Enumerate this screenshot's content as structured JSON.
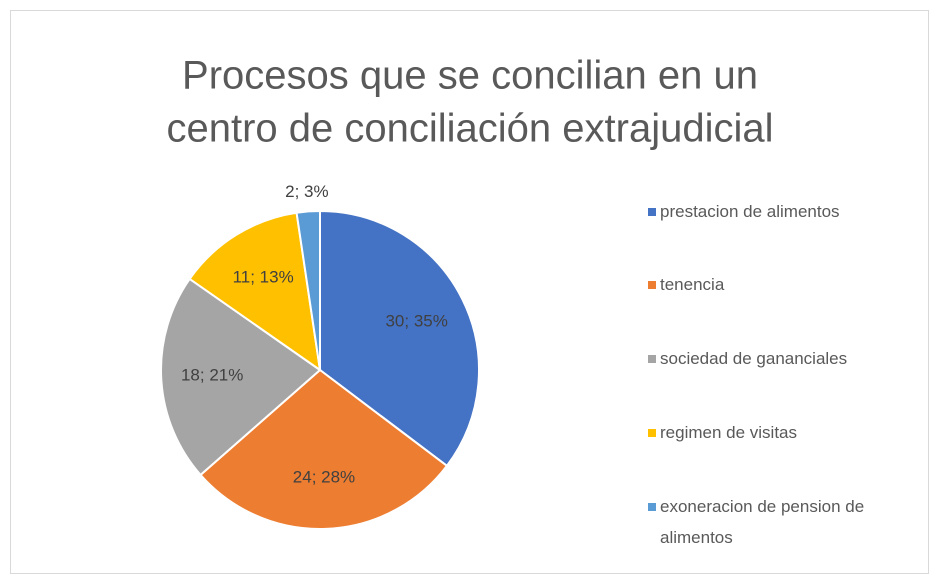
{
  "chart_data": {
    "type": "pie",
    "title": [
      "Procesos que se concilian en un",
      "centro de conciliación extrajudicial"
    ],
    "categories": [
      "prestacion de alimentos",
      "tenencia",
      "sociedad de gananciales",
      "regimen de visitas",
      "exoneracion de pension de alimentos"
    ],
    "values": [
      30,
      24,
      18,
      11,
      2
    ],
    "value_labels": [
      "30; 35%",
      "24; 28%",
      "18; 21%",
      "11; 13%",
      "2; 3%"
    ],
    "colors": [
      "#4472c4",
      "#ed7d31",
      "#a5a5a5",
      "#ffc000",
      "#5b9bd5"
    ],
    "legend": "right"
  }
}
